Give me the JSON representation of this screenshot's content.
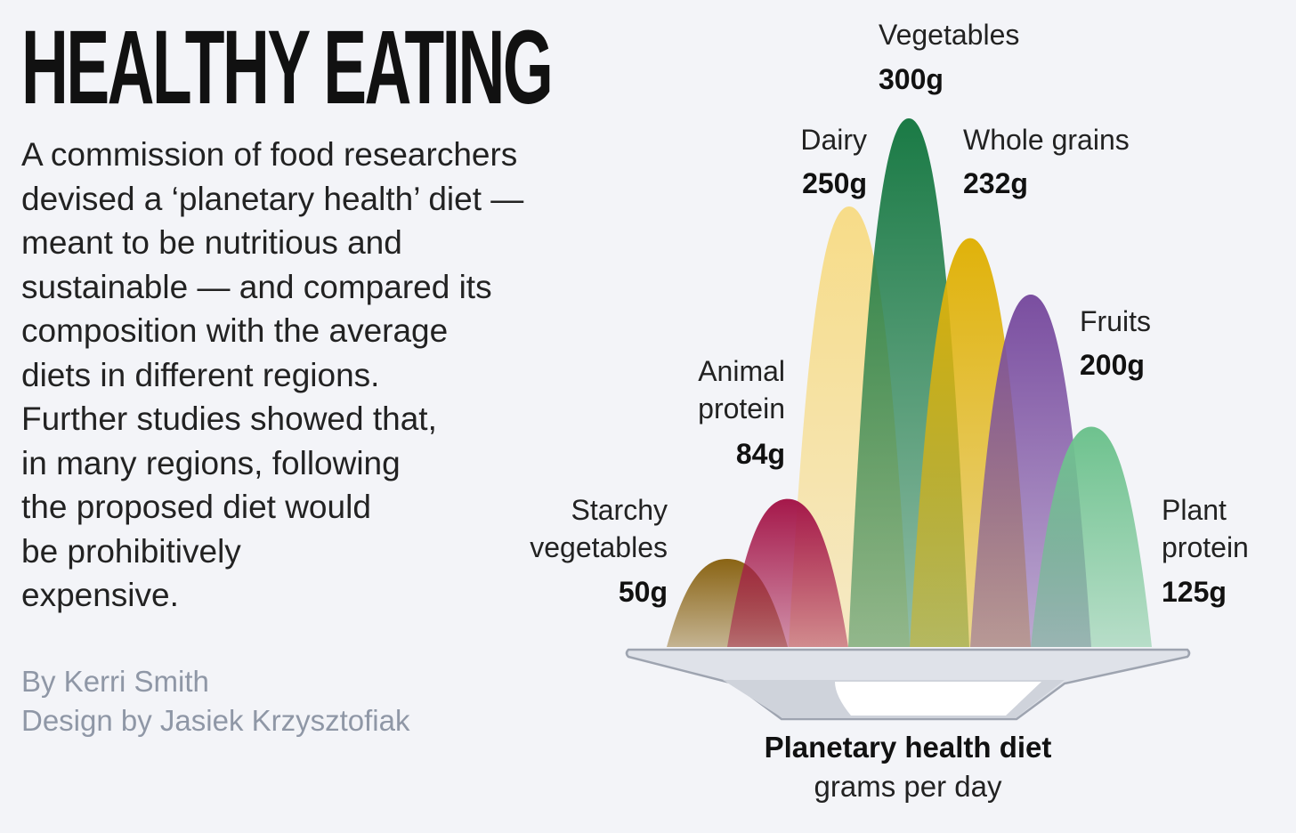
{
  "header": {
    "title": "HEALTHY EATING",
    "intro": "A commission of food researchers\ndevised a ‘planetary health’ diet —\nmeant to be nutritious and\nsustainable — and compared its\ncomposition with the average\ndiets in different regions.\nFurther studies showed that,\nin many regions, following\nthe proposed diet would\nbe prohibitively\nexpensive."
  },
  "credits": {
    "author": "By Kerri Smith",
    "design": "Design by Jasiek Krzysztofiak"
  },
  "chart_data": {
    "type": "area",
    "title": "Planetary health diet",
    "subtitle": "grams per day",
    "unit": "g",
    "categories": [
      "Starchy vegetables",
      "Animal protein",
      "Dairy",
      "Vegetables",
      "Whole grains",
      "Fruits",
      "Plant protein"
    ],
    "series": [
      {
        "values": [
          50,
          84,
          250,
          300,
          232,
          200,
          125
        ]
      }
    ],
    "labels": [
      {
        "lines": [
          "Starchy",
          "vegetables"
        ],
        "value": "50g"
      },
      {
        "lines": [
          "Animal",
          "protein"
        ],
        "value": "84g"
      },
      {
        "lines": [
          "Dairy"
        ],
        "value": "250g"
      },
      {
        "lines": [
          "Vegetables"
        ],
        "value": "300g"
      },
      {
        "lines": [
          "Whole grains"
        ],
        "value": "232g"
      },
      {
        "lines": [
          "Fruits"
        ],
        "value": "200g"
      },
      {
        "lines": [
          "Plant",
          "protein"
        ],
        "value": "125g"
      }
    ],
    "colors": [
      "#8a6414",
      "#a5184a",
      "#f7dc88",
      "#1a7a45",
      "#e0b20a",
      "#7a4ea0",
      "#6ec28e"
    ],
    "grid": false,
    "legend": "none"
  }
}
